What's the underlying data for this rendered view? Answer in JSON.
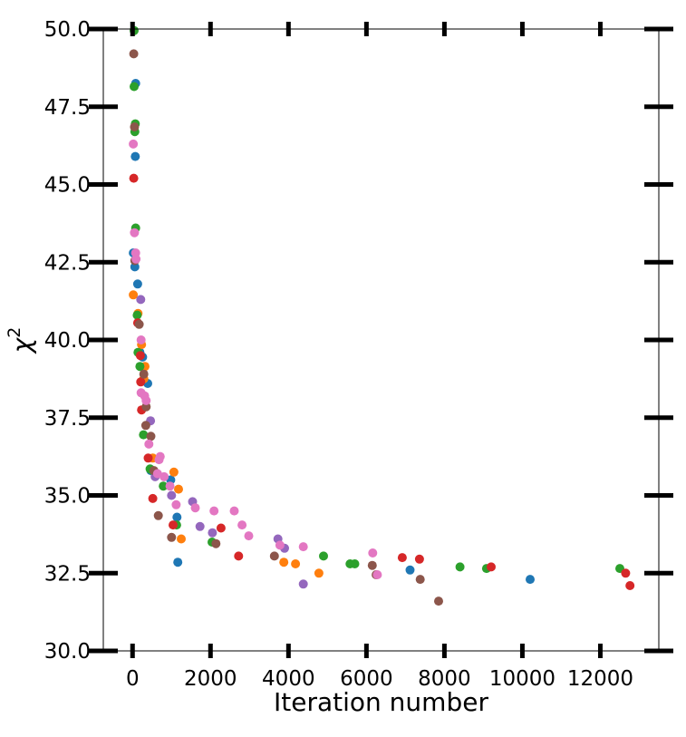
{
  "chart_data": {
    "type": "scatter",
    "title": "",
    "xlabel": "Iteration number",
    "ylabel": "χ²",
    "xlim": [
      -750,
      13500
    ],
    "ylim": [
      30.0,
      50.0
    ],
    "x_ticks": [
      0,
      2000,
      4000,
      6000,
      8000,
      10000,
      12000
    ],
    "y_ticks": [
      30.0,
      32.5,
      35.0,
      37.5,
      40.0,
      42.5,
      45.0,
      47.5,
      50.0
    ],
    "x_tick_labels": [
      "0",
      "2000",
      "4000",
      "6000",
      "8000",
      "10000",
      "12000"
    ],
    "y_tick_labels": [
      "30.0",
      "32.5",
      "35.0",
      "37.5",
      "40.0",
      "42.5",
      "45.0",
      "47.5",
      "50.0"
    ],
    "grid": false,
    "legend": "none",
    "series": [
      {
        "color": "#1f77b4",
        "points": [
          [
            80,
            48.25
          ],
          [
            70,
            45.9
          ],
          [
            20,
            42.8
          ],
          [
            60,
            42.35
          ],
          [
            130,
            41.8
          ],
          [
            190,
            39.6
          ],
          [
            260,
            39.45
          ],
          [
            390,
            38.6
          ],
          [
            470,
            35.8
          ],
          [
            980,
            35.5
          ],
          [
            1140,
            34.3
          ],
          [
            1160,
            32.85
          ],
          [
            7120,
            32.6
          ],
          [
            10200,
            32.3
          ]
        ]
      },
      {
        "color": "#ff7f0e",
        "points": [
          [
            20,
            41.45
          ],
          [
            140,
            40.85
          ],
          [
            230,
            39.85
          ],
          [
            320,
            39.15
          ],
          [
            290,
            38.75
          ],
          [
            520,
            36.2
          ],
          [
            1060,
            35.75
          ],
          [
            1180,
            35.2
          ],
          [
            1250,
            33.6
          ],
          [
            3880,
            32.85
          ],
          [
            4180,
            32.8
          ],
          [
            4780,
            32.5
          ]
        ]
      },
      {
        "color": "#2ca02c",
        "points": [
          [
            40,
            49.95
          ],
          [
            40,
            48.15
          ],
          [
            70,
            46.95
          ],
          [
            60,
            46.7
          ],
          [
            80,
            43.6
          ],
          [
            120,
            40.8
          ],
          [
            140,
            39.6
          ],
          [
            190,
            39.15
          ],
          [
            280,
            36.95
          ],
          [
            450,
            35.85
          ],
          [
            520,
            35.8
          ],
          [
            790,
            35.3
          ],
          [
            1130,
            34.05
          ],
          [
            2040,
            33.5
          ],
          [
            4900,
            33.05
          ],
          [
            5580,
            32.8
          ],
          [
            5700,
            32.8
          ],
          [
            8400,
            32.7
          ],
          [
            9080,
            32.65
          ],
          [
            12500,
            32.65
          ]
        ]
      },
      {
        "color": "#d62728",
        "points": [
          [
            30,
            45.2
          ],
          [
            130,
            40.55
          ],
          [
            200,
            39.5
          ],
          [
            210,
            38.65
          ],
          [
            230,
            37.75
          ],
          [
            400,
            36.2
          ],
          [
            520,
            34.9
          ],
          [
            1040,
            34.05
          ],
          [
            2270,
            33.95
          ],
          [
            2720,
            33.05
          ],
          [
            6920,
            33.0
          ],
          [
            7360,
            32.95
          ],
          [
            9200,
            32.7
          ],
          [
            12650,
            32.5
          ],
          [
            12760,
            32.1
          ]
        ]
      },
      {
        "color": "#9467bd",
        "points": [
          [
            210,
            41.3
          ],
          [
            460,
            37.4
          ],
          [
            580,
            35.6
          ],
          [
            1000,
            35.0
          ],
          [
            1540,
            34.8
          ],
          [
            1730,
            34.0
          ],
          [
            2050,
            33.8
          ],
          [
            3730,
            33.6
          ],
          [
            3900,
            33.3
          ],
          [
            4380,
            32.15
          ]
        ]
      },
      {
        "color": "#8c564b",
        "points": [
          [
            30,
            49.2
          ],
          [
            50,
            46.85
          ],
          [
            60,
            42.55
          ],
          [
            170,
            40.5
          ],
          [
            290,
            38.9
          ],
          [
            350,
            37.85
          ],
          [
            340,
            37.25
          ],
          [
            470,
            36.9
          ],
          [
            550,
            35.8
          ],
          [
            660,
            34.35
          ],
          [
            1000,
            33.65
          ],
          [
            2140,
            33.45
          ],
          [
            3640,
            33.05
          ],
          [
            6150,
            32.75
          ],
          [
            6250,
            32.45
          ],
          [
            7380,
            32.3
          ],
          [
            7850,
            31.6
          ]
        ]
      },
      {
        "color": "#e377c2",
        "points": [
          [
            20,
            46.3
          ],
          [
            50,
            43.45
          ],
          [
            80,
            42.8
          ],
          [
            90,
            42.6
          ],
          [
            220,
            40.0
          ],
          [
            220,
            38.3
          ],
          [
            310,
            38.2
          ],
          [
            350,
            38.05
          ],
          [
            420,
            36.65
          ],
          [
            640,
            35.7
          ],
          [
            710,
            36.25
          ],
          [
            680,
            36.15
          ],
          [
            810,
            35.6
          ],
          [
            960,
            35.3
          ],
          [
            1120,
            34.7
          ],
          [
            1610,
            34.6
          ],
          [
            2090,
            34.5
          ],
          [
            2610,
            34.5
          ],
          [
            2810,
            34.05
          ],
          [
            2980,
            33.7
          ],
          [
            3780,
            33.4
          ],
          [
            4380,
            33.35
          ],
          [
            6160,
            33.15
          ],
          [
            6280,
            32.45
          ]
        ]
      }
    ]
  }
}
